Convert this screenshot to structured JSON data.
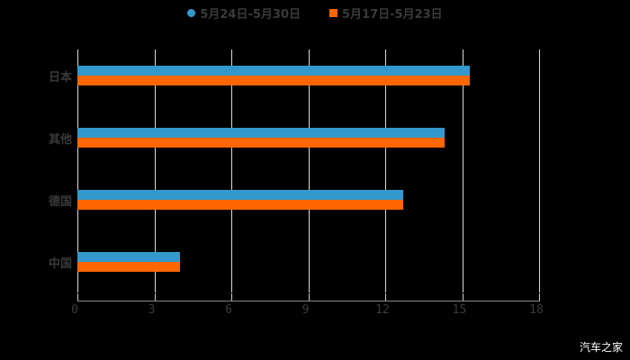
{
  "chart_data": {
    "type": "bar",
    "orientation": "horizontal",
    "title": "",
    "categories": [
      "日本",
      "其他",
      "德国",
      "中国"
    ],
    "series": [
      {
        "name": "5月24日-5月30日",
        "color": "#3399cc",
        "values": [
          15.3,
          14.3,
          12.7,
          4.0
        ]
      },
      {
        "name": "5月17日-5月23日",
        "color": "#ff6600",
        "values": [
          15.3,
          14.3,
          12.7,
          4.0
        ]
      }
    ],
    "xlabel": "",
    "ylabel": "",
    "xlim": [
      0,
      18
    ],
    "xticks": [
      "0",
      "3",
      "6",
      "9",
      "12",
      "15",
      "18"
    ],
    "grid": true,
    "legend_position": "top"
  },
  "legend": {
    "series0": "5月24日-5月30日",
    "series1": "5月17日-5月23日"
  },
  "watermark": "汽车之家"
}
